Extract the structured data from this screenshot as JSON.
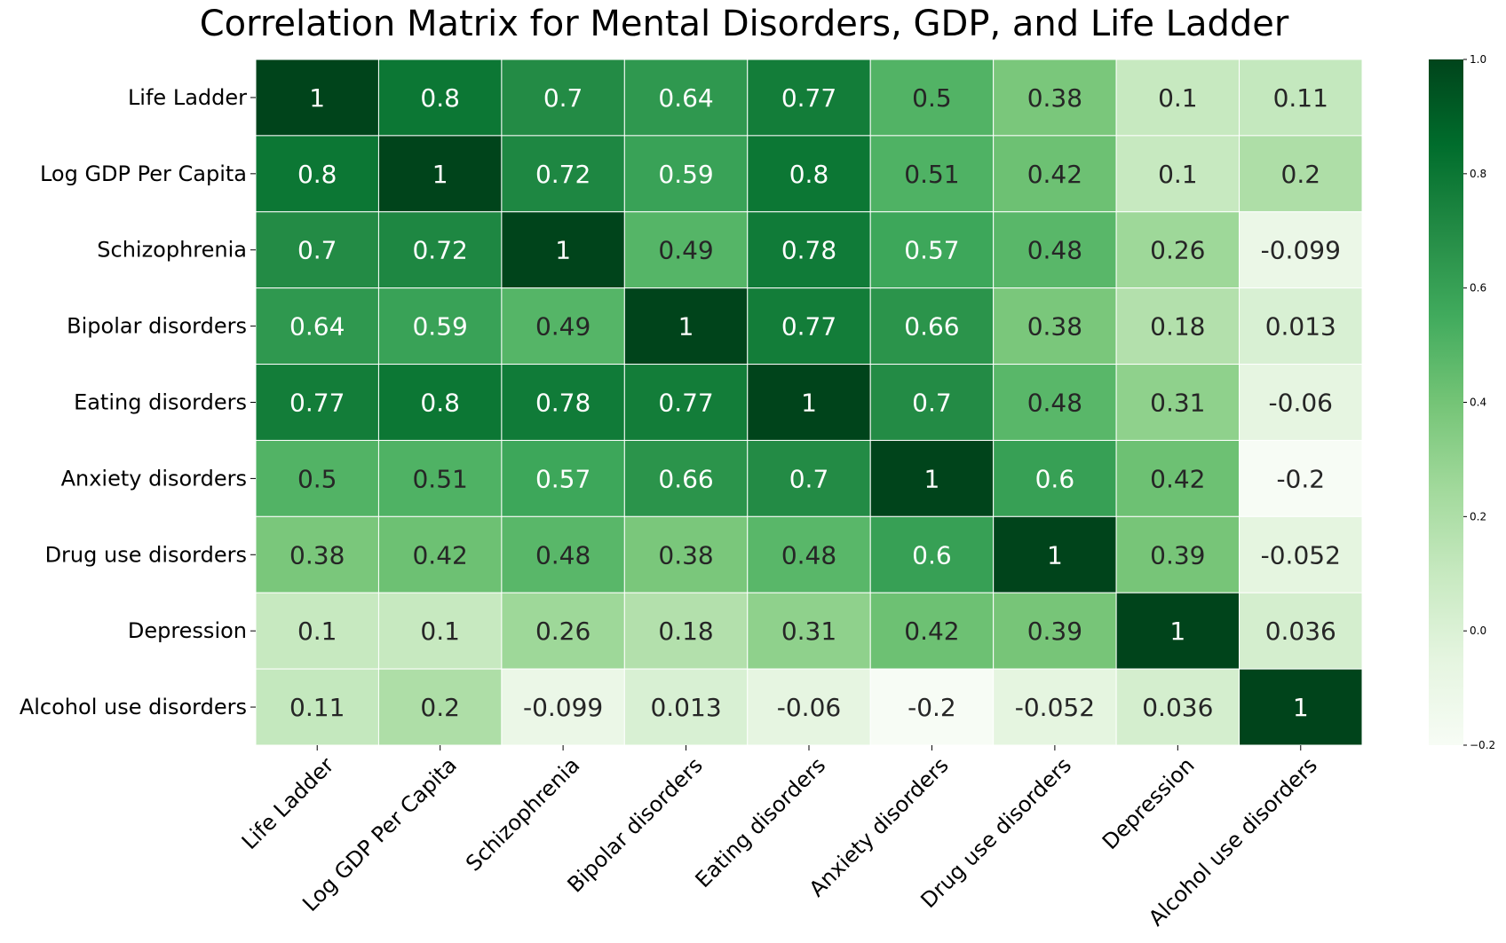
{
  "chart_data": {
    "type": "heatmap",
    "title": "Correlation Matrix for Mental Disorders, GDP, and Life Ladder",
    "labels": [
      "Life Ladder",
      "Log GDP Per Capita",
      "Schizophrenia",
      "Bipolar disorders",
      "Eating disorders",
      "Anxiety disorders",
      "Drug use disorders",
      "Depression",
      "Alcohol use disorders"
    ],
    "matrix": [
      [
        1,
        0.8,
        0.7,
        0.64,
        0.77,
        0.5,
        0.38,
        0.1,
        0.11
      ],
      [
        0.8,
        1,
        0.72,
        0.59,
        0.8,
        0.51,
        0.42,
        0.1,
        0.2
      ],
      [
        0.7,
        0.72,
        1,
        0.49,
        0.78,
        0.57,
        0.48,
        0.26,
        -0.099
      ],
      [
        0.64,
        0.59,
        0.49,
        1,
        0.77,
        0.66,
        0.38,
        0.18,
        0.013
      ],
      [
        0.77,
        0.8,
        0.78,
        0.77,
        1,
        0.7,
        0.48,
        0.31,
        -0.06
      ],
      [
        0.5,
        0.51,
        0.57,
        0.66,
        0.7,
        1,
        0.6,
        0.42,
        -0.2
      ],
      [
        0.38,
        0.42,
        0.48,
        0.38,
        0.48,
        0.6,
        1,
        0.39,
        -0.052
      ],
      [
        0.1,
        0.1,
        0.26,
        0.18,
        0.31,
        0.42,
        0.39,
        1,
        0.036
      ],
      [
        0.11,
        0.2,
        -0.099,
        0.013,
        -0.06,
        -0.2,
        -0.052,
        0.036,
        1
      ]
    ],
    "colorbar": {
      "vmin": -0.2,
      "vmax": 1.0,
      "ticks": [
        -0.2,
        0.0,
        0.2,
        0.4,
        0.6,
        0.8,
        1.0
      ],
      "tick_labels": [
        "−0.2",
        "0.0",
        "0.2",
        "0.4",
        "0.6",
        "0.8",
        "1.0"
      ]
    },
    "colormap": "Greens",
    "colormap_stops": [
      "#f7fcf5",
      "#e5f5e0",
      "#c7e9c0",
      "#a1d99b",
      "#74c476",
      "#41ab5d",
      "#238b45",
      "#006d2c",
      "#00441b"
    ]
  }
}
